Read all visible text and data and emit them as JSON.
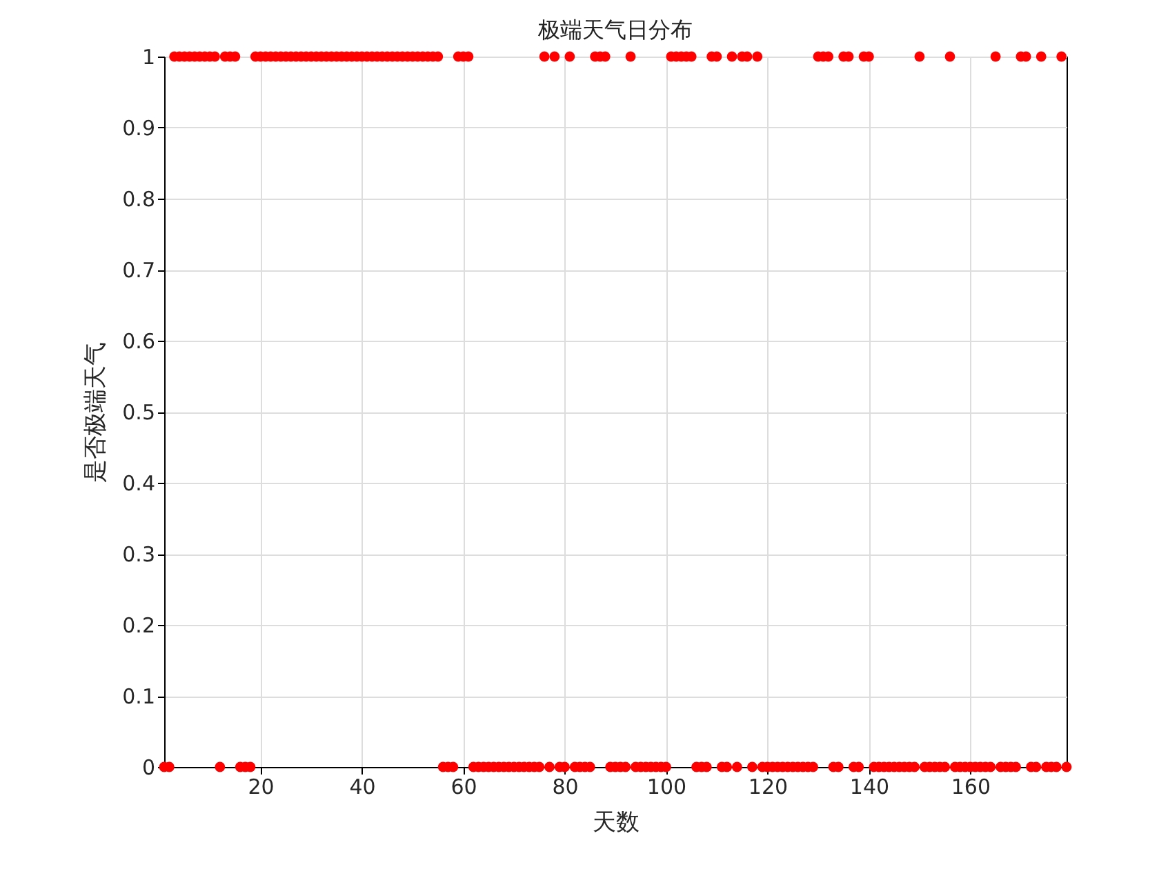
{
  "chart_data": {
    "type": "scatter",
    "title": "极端天气日分布",
    "xlabel": "天数",
    "ylabel": "是否极端天气",
    "xlim": [
      1,
      179
    ],
    "xticks": [
      20,
      40,
      60,
      80,
      100,
      120,
      140,
      160
    ],
    "ylim": [
      0,
      1
    ],
    "yticks": [
      0,
      0.1,
      0.2,
      0.3,
      0.4,
      0.5,
      0.6,
      0.7,
      0.8,
      0.9,
      1
    ],
    "grid": true,
    "marker": "circle",
    "series": [
      {
        "color": "#ff0000",
        "x": [
          1,
          2,
          3,
          4,
          5,
          6,
          7,
          8,
          9,
          10,
          11,
          12,
          13,
          14,
          15,
          16,
          17,
          18,
          19,
          20,
          21,
          22,
          23,
          24,
          25,
          26,
          27,
          28,
          29,
          30,
          31,
          32,
          33,
          34,
          35,
          36,
          37,
          38,
          39,
          40,
          41,
          42,
          43,
          44,
          45,
          46,
          47,
          48,
          49,
          50,
          51,
          52,
          53,
          54,
          55,
          56,
          57,
          58,
          59,
          60,
          61,
          62,
          63,
          64,
          65,
          66,
          67,
          68,
          69,
          70,
          71,
          72,
          73,
          74,
          75,
          76,
          77,
          78,
          79,
          80,
          81,
          82,
          83,
          84,
          85,
          86,
          87,
          88,
          89,
          90,
          91,
          92,
          93,
          94,
          95,
          96,
          97,
          98,
          99,
          100,
          101,
          102,
          103,
          104,
          105,
          106,
          107,
          108,
          109,
          110,
          111,
          112,
          113,
          114,
          115,
          116,
          117,
          118,
          119,
          120,
          121,
          122,
          123,
          124,
          125,
          126,
          127,
          128,
          129,
          130,
          131,
          132,
          133,
          134,
          135,
          136,
          137,
          138,
          139,
          140,
          141,
          142,
          143,
          144,
          145,
          146,
          147,
          148,
          149,
          150,
          151,
          152,
          153,
          154,
          155,
          156,
          157,
          158,
          159,
          160,
          161,
          162,
          163,
          164,
          165,
          166,
          167,
          168,
          169,
          170,
          171,
          172,
          173,
          174,
          175,
          176,
          177,
          178,
          179
        ],
        "values": [
          0,
          0,
          1,
          1,
          1,
          1,
          1,
          1,
          1,
          1,
          1,
          0,
          1,
          1,
          1,
          0,
          0,
          0,
          1,
          1,
          1,
          1,
          1,
          1,
          1,
          1,
          1,
          1,
          1,
          1,
          1,
          1,
          1,
          1,
          1,
          1,
          1,
          1,
          1,
          1,
          1,
          1,
          1,
          1,
          1,
          1,
          1,
          1,
          1,
          1,
          1,
          1,
          1,
          1,
          1,
          0,
          0,
          0,
          1,
          1,
          1,
          0,
          0,
          0,
          0,
          0,
          0,
          0,
          0,
          0,
          0,
          0,
          0,
          0,
          0,
          1,
          0,
          1,
          0,
          0,
          1,
          0,
          0,
          0,
          0,
          1,
          1,
          1,
          0,
          0,
          0,
          0,
          1,
          0,
          0,
          0,
          0,
          0,
          0,
          0,
          1,
          1,
          1,
          1,
          1,
          0,
          0,
          0,
          1,
          1,
          0,
          0,
          1,
          0,
          1,
          1,
          0,
          1,
          0,
          0,
          0,
          0,
          0,
          0,
          0,
          0,
          0,
          0,
          0,
          1,
          1,
          1,
          0,
          0,
          1,
          1,
          0,
          0,
          1,
          1,
          0,
          0,
          0,
          0,
          0,
          0,
          0,
          0,
          0,
          1,
          0,
          0,
          0,
          0,
          0,
          1,
          0,
          0,
          0,
          0,
          0,
          0,
          0,
          0,
          1,
          0,
          0,
          0,
          0,
          1,
          1,
          0,
          0,
          1,
          0,
          0,
          0,
          1,
          0
        ]
      }
    ]
  }
}
